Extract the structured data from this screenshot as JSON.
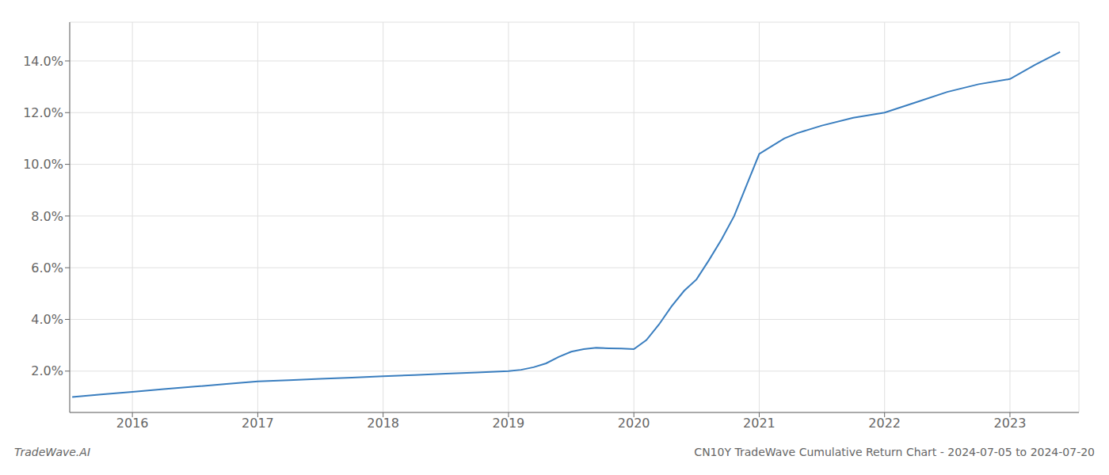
{
  "chart_data": {
    "type": "line",
    "title": "CN10Y TradeWave Cumulative Return Chart - 2024-07-05 to 2024-07-20",
    "annotations": [
      "TradeWave.AI"
    ],
    "x": [
      2015.52,
      2015.75,
      2016.0,
      2016.25,
      2016.5,
      2016.75,
      2017.0,
      2017.25,
      2017.5,
      2017.75,
      2018.0,
      2018.25,
      2018.5,
      2018.75,
      2019.0,
      2019.1,
      2019.2,
      2019.3,
      2019.4,
      2019.5,
      2019.6,
      2019.7,
      2019.8,
      2019.9,
      2020.0,
      2020.1,
      2020.2,
      2020.3,
      2020.4,
      2020.5,
      2020.6,
      2020.7,
      2020.8,
      2020.9,
      2021.0,
      2021.1,
      2021.2,
      2021.3,
      2021.5,
      2021.75,
      2022.0,
      2022.25,
      2022.5,
      2022.75,
      2023.0,
      2023.2,
      2023.4
    ],
    "values": [
      1.0,
      1.1,
      1.2,
      1.3,
      1.4,
      1.5,
      1.6,
      1.65,
      1.7,
      1.75,
      1.8,
      1.85,
      1.9,
      1.95,
      2.0,
      2.05,
      2.15,
      2.3,
      2.55,
      2.75,
      2.85,
      2.9,
      2.88,
      2.87,
      2.85,
      3.2,
      3.8,
      4.5,
      5.1,
      5.55,
      6.3,
      7.1,
      8.0,
      9.2,
      10.4,
      10.7,
      11.0,
      11.2,
      11.5,
      11.8,
      12.0,
      12.4,
      12.8,
      13.1,
      13.3,
      13.85,
      14.35
    ],
    "color": "#3a7ebf",
    "xlim": [
      2015.5,
      2023.55
    ],
    "ylim": [
      0.4,
      15.5
    ],
    "xticks": [
      2016,
      2017,
      2018,
      2019,
      2020,
      2021,
      2022,
      2023
    ],
    "yticks": [
      {
        "value": 2.0,
        "label": "2.0%"
      },
      {
        "value": 4.0,
        "label": "4.0%"
      },
      {
        "value": 6.0,
        "label": "6.0%"
      },
      {
        "value": 8.0,
        "label": "8.0%"
      },
      {
        "value": 10.0,
        "label": "10.0%"
      },
      {
        "value": 12.0,
        "label": "12.0%"
      },
      {
        "value": 14.0,
        "label": "14.0%"
      }
    ],
    "grid": true
  }
}
